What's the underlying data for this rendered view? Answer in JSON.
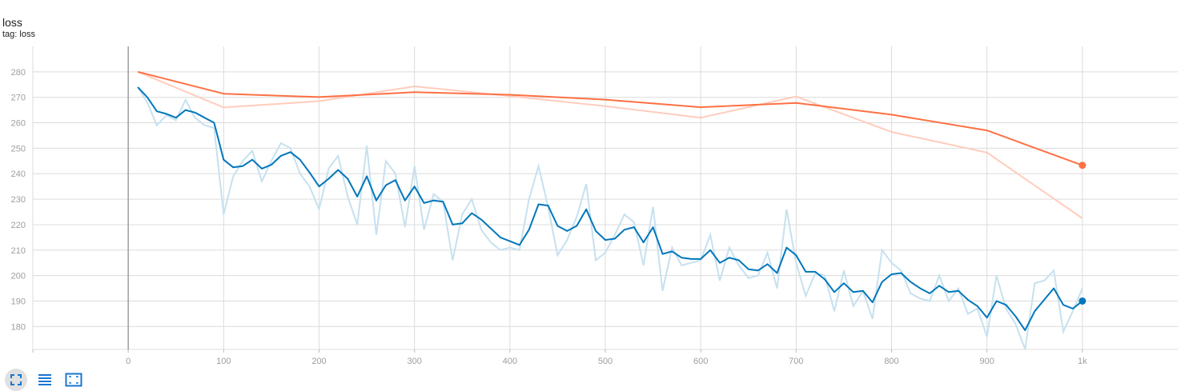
{
  "card": {
    "title": "loss",
    "subtitle": "tag: loss"
  },
  "colors": {
    "accent": "#1976d2",
    "grid": "#dcdcdc",
    "axis": "#9e9e9e"
  },
  "toolbar": {
    "buttons": [
      {
        "name": "fit-domain-button",
        "icon": "expand-corners-icon"
      },
      {
        "name": "toggle-log-scale-button",
        "icon": "list-lines-icon"
      },
      {
        "name": "fit-to-data-button",
        "icon": "fit-frame-icon"
      }
    ]
  },
  "chart_data": {
    "type": "line",
    "title": "loss",
    "subtitle": "tag: loss",
    "xlabel": "",
    "ylabel": "",
    "xlim": [
      -100,
      1100
    ],
    "ylim": [
      171,
      290
    ],
    "x_ticks": [
      0,
      100,
      200,
      300,
      400,
      500,
      600,
      700,
      800,
      900,
      1000
    ],
    "x_tick_labels": [
      "0",
      "100",
      "200",
      "300",
      "400",
      "500",
      "600",
      "700",
      "800",
      "900",
      "1k"
    ],
    "y_ticks": [
      180,
      190,
      200,
      210,
      220,
      230,
      240,
      250,
      260,
      270,
      280
    ],
    "grid": true,
    "series": [
      {
        "color": "#ff7043",
        "raw_color": "#ffccbc",
        "x": [
          10,
          100,
          200,
          300,
          400,
          500,
          600,
          700,
          800,
          900,
          1000
        ],
        "raw": [
          280,
          266,
          268.5,
          274.3,
          270.5,
          266.5,
          262,
          270.3,
          256.4,
          248.3,
          222.5
        ],
        "smoothed": [
          280,
          271.4,
          270.1,
          272,
          271,
          269.1,
          266.1,
          267.8,
          263.2,
          257,
          243.3
        ]
      },
      {
        "color": "#0077bb",
        "raw_color": "#c6e1ef",
        "x": [
          10,
          20,
          30,
          40,
          50,
          60,
          70,
          80,
          90,
          100,
          110,
          120,
          130,
          140,
          150,
          160,
          170,
          180,
          190,
          200,
          210,
          220,
          230,
          240,
          250,
          260,
          270,
          280,
          290,
          300,
          310,
          320,
          330,
          340,
          350,
          360,
          370,
          380,
          390,
          400,
          410,
          420,
          430,
          440,
          450,
          460,
          470,
          480,
          490,
          500,
          510,
          520,
          530,
          540,
          550,
          560,
          570,
          580,
          590,
          600,
          610,
          620,
          630,
          640,
          650,
          660,
          670,
          680,
          690,
          700,
          710,
          720,
          730,
          740,
          750,
          760,
          770,
          780,
          790,
          800,
          810,
          820,
          830,
          840,
          850,
          860,
          870,
          880,
          890,
          900,
          910,
          920,
          930,
          940,
          950,
          960,
          970,
          980,
          990,
          1000
        ],
        "raw": [
          274,
          268,
          259,
          263,
          261,
          269,
          262,
          259,
          258,
          224,
          239,
          245,
          249,
          237,
          245,
          252,
          250,
          240,
          235,
          226,
          242,
          247,
          231,
          220,
          251,
          216,
          245,
          240,
          219,
          243,
          218,
          232,
          229,
          206,
          224,
          230,
          218,
          213,
          210,
          211,
          210,
          230,
          243,
          227,
          208,
          214,
          223,
          236,
          206,
          209,
          216,
          224,
          221,
          204,
          227,
          194,
          211,
          204,
          205,
          206,
          216,
          198,
          211,
          204,
          199,
          200,
          209,
          195,
          226,
          205,
          192,
          201,
          200,
          186,
          202,
          188,
          194,
          183,
          210,
          205,
          202,
          193,
          191,
          190,
          200,
          190,
          195,
          185,
          187,
          176,
          200,
          187,
          181,
          171,
          197,
          198,
          202,
          178,
          186,
          195
        ],
        "smoothed": [
          274,
          270,
          264.5,
          263.5,
          262,
          265,
          264,
          262,
          260,
          245.5,
          242.5,
          243,
          245.5,
          242,
          243.5,
          247,
          248.5,
          245.5,
          240.5,
          235,
          238,
          241.5,
          238,
          231,
          239,
          229.5,
          235.5,
          237.5,
          229.5,
          235,
          228.5,
          229.5,
          229,
          220,
          220.5,
          224.5,
          222,
          218.5,
          215,
          213.5,
          212,
          218,
          228,
          227.5,
          219.5,
          217.5,
          219.5,
          226,
          217.5,
          214,
          214.5,
          218,
          219,
          213,
          219,
          208.5,
          209.5,
          207,
          206.5,
          206.5,
          210,
          205,
          207,
          206,
          202.5,
          202,
          204.5,
          201,
          211,
          208,
          201.5,
          201.5,
          198.5,
          193.5,
          197,
          193.5,
          194,
          189.5,
          197.5,
          200.5,
          201,
          197.5,
          195,
          193,
          196,
          193.5,
          194,
          190.5,
          188,
          183.5,
          190,
          188.5,
          184,
          178.5,
          186,
          190.5,
          195,
          188.5,
          187,
          190
        ]
      }
    ]
  }
}
